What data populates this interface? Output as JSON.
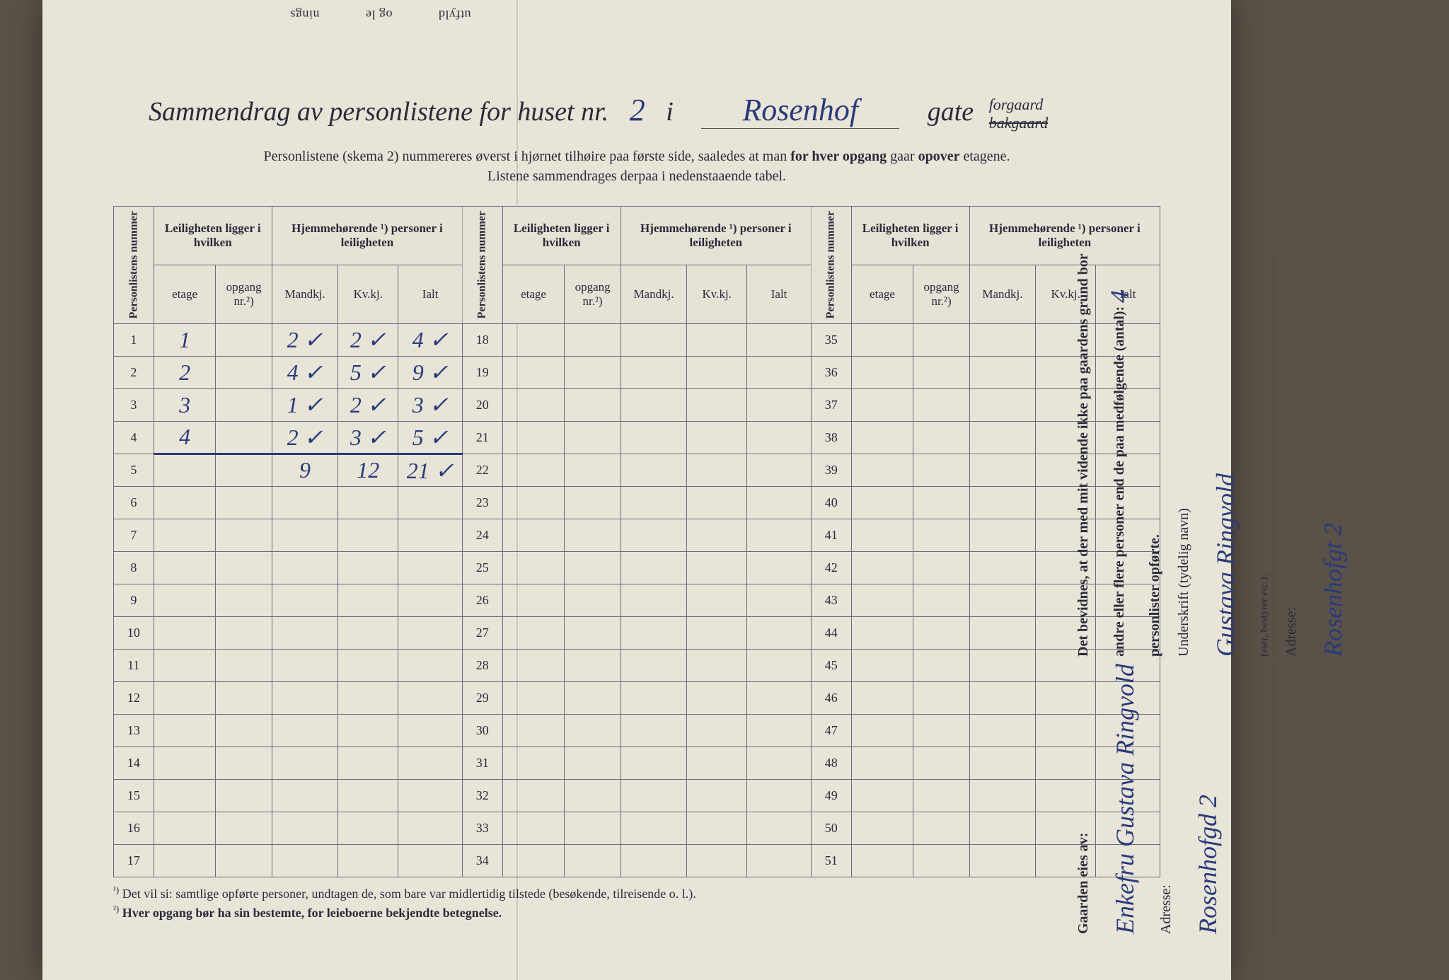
{
  "topFragments": [
    "utfyld",
    "og le",
    "nings"
  ],
  "title": {
    "prefix": "Sammendrag av personlistene for huset nr.",
    "houseNumber": "2",
    "middle": "i",
    "street": "Rosenhof",
    "suffix": "gate",
    "option1": "forgaard",
    "option2": "bakgaard"
  },
  "subheader": {
    "line1a": "Personlistene (skema 2) nummereres øverst i hjørnet tilhøire paa første side, saaledes at man ",
    "line1b": "for hver opgang",
    "line1c": " gaar ",
    "line1d": "opover",
    "line1e": " etagene.",
    "line2": "Listene sammendrages derpaa i nedenstaaende tabel."
  },
  "headers": {
    "personlistens": "Personlistens nummer",
    "leil": "Leiligheten ligger i hvilken",
    "hjem": "Hjemmehørende ¹) personer i leiligheten",
    "etage": "etage",
    "opgang": "opgang nr.²)",
    "mandkj": "Mandkj.",
    "kvkj": "Kv.kj.",
    "ialt": "Ialt"
  },
  "rows": [
    {
      "n": "1",
      "etage": "1",
      "opg": "",
      "m": "2 ✓",
      "k": "2 ✓",
      "i": "4 ✓"
    },
    {
      "n": "2",
      "etage": "2",
      "opg": "",
      "m": "4 ✓",
      "k": "5 ✓",
      "i": "9 ✓"
    },
    {
      "n": "3",
      "etage": "3",
      "opg": "",
      "m": "1 ✓",
      "k": "2 ✓",
      "i": "3 ✓"
    },
    {
      "n": "4",
      "etage": "4",
      "opg": "",
      "m": "2 ✓",
      "k": "3 ✓",
      "i": "5 ✓"
    },
    {
      "n": "5",
      "etage": "",
      "opg": "",
      "m": "9",
      "k": "12",
      "i": "21 ✓"
    },
    {
      "n": "6"
    },
    {
      "n": "7"
    },
    {
      "n": "8"
    },
    {
      "n": "9"
    },
    {
      "n": "10"
    },
    {
      "n": "11"
    },
    {
      "n": "12"
    },
    {
      "n": "13"
    },
    {
      "n": "14"
    },
    {
      "n": "15"
    },
    {
      "n": "16"
    },
    {
      "n": "17"
    }
  ],
  "col2Start": 18,
  "col3Start": 35,
  "footnotes": {
    "f1idx": "¹)",
    "f1": "Det vil si: samtlige opførte personer, undtagen de, som bare var midlertidig tilstede (besøkende, tilreisende o. l.).",
    "f2idx": "²)",
    "f2": "Hver opgang bør ha sin bestemte, for leieboerne bekjendte betegnelse."
  },
  "side": {
    "ownerLabel": "Gaarden eies av:",
    "ownerName": "Enkefru Gustava Ringvold",
    "adresseLabel": "Adresse:",
    "ownerAddress": "Rosenhofgd 2",
    "certLine1": "Det bevidnes, at der med mit vidende ikke paa gaardens grund bor",
    "certLine2a": "andre eller flere personer end de paa medfølgende (antal):",
    "certCount": "4",
    "certLine3": "personlister opførte.",
    "sigLabel": "Underskrift (tydelig navn)",
    "sigRole": "(eier, bestyrer etc.).",
    "signature": "Gustava Ringvold",
    "sigAddress": "Rosenhofgt 2"
  }
}
